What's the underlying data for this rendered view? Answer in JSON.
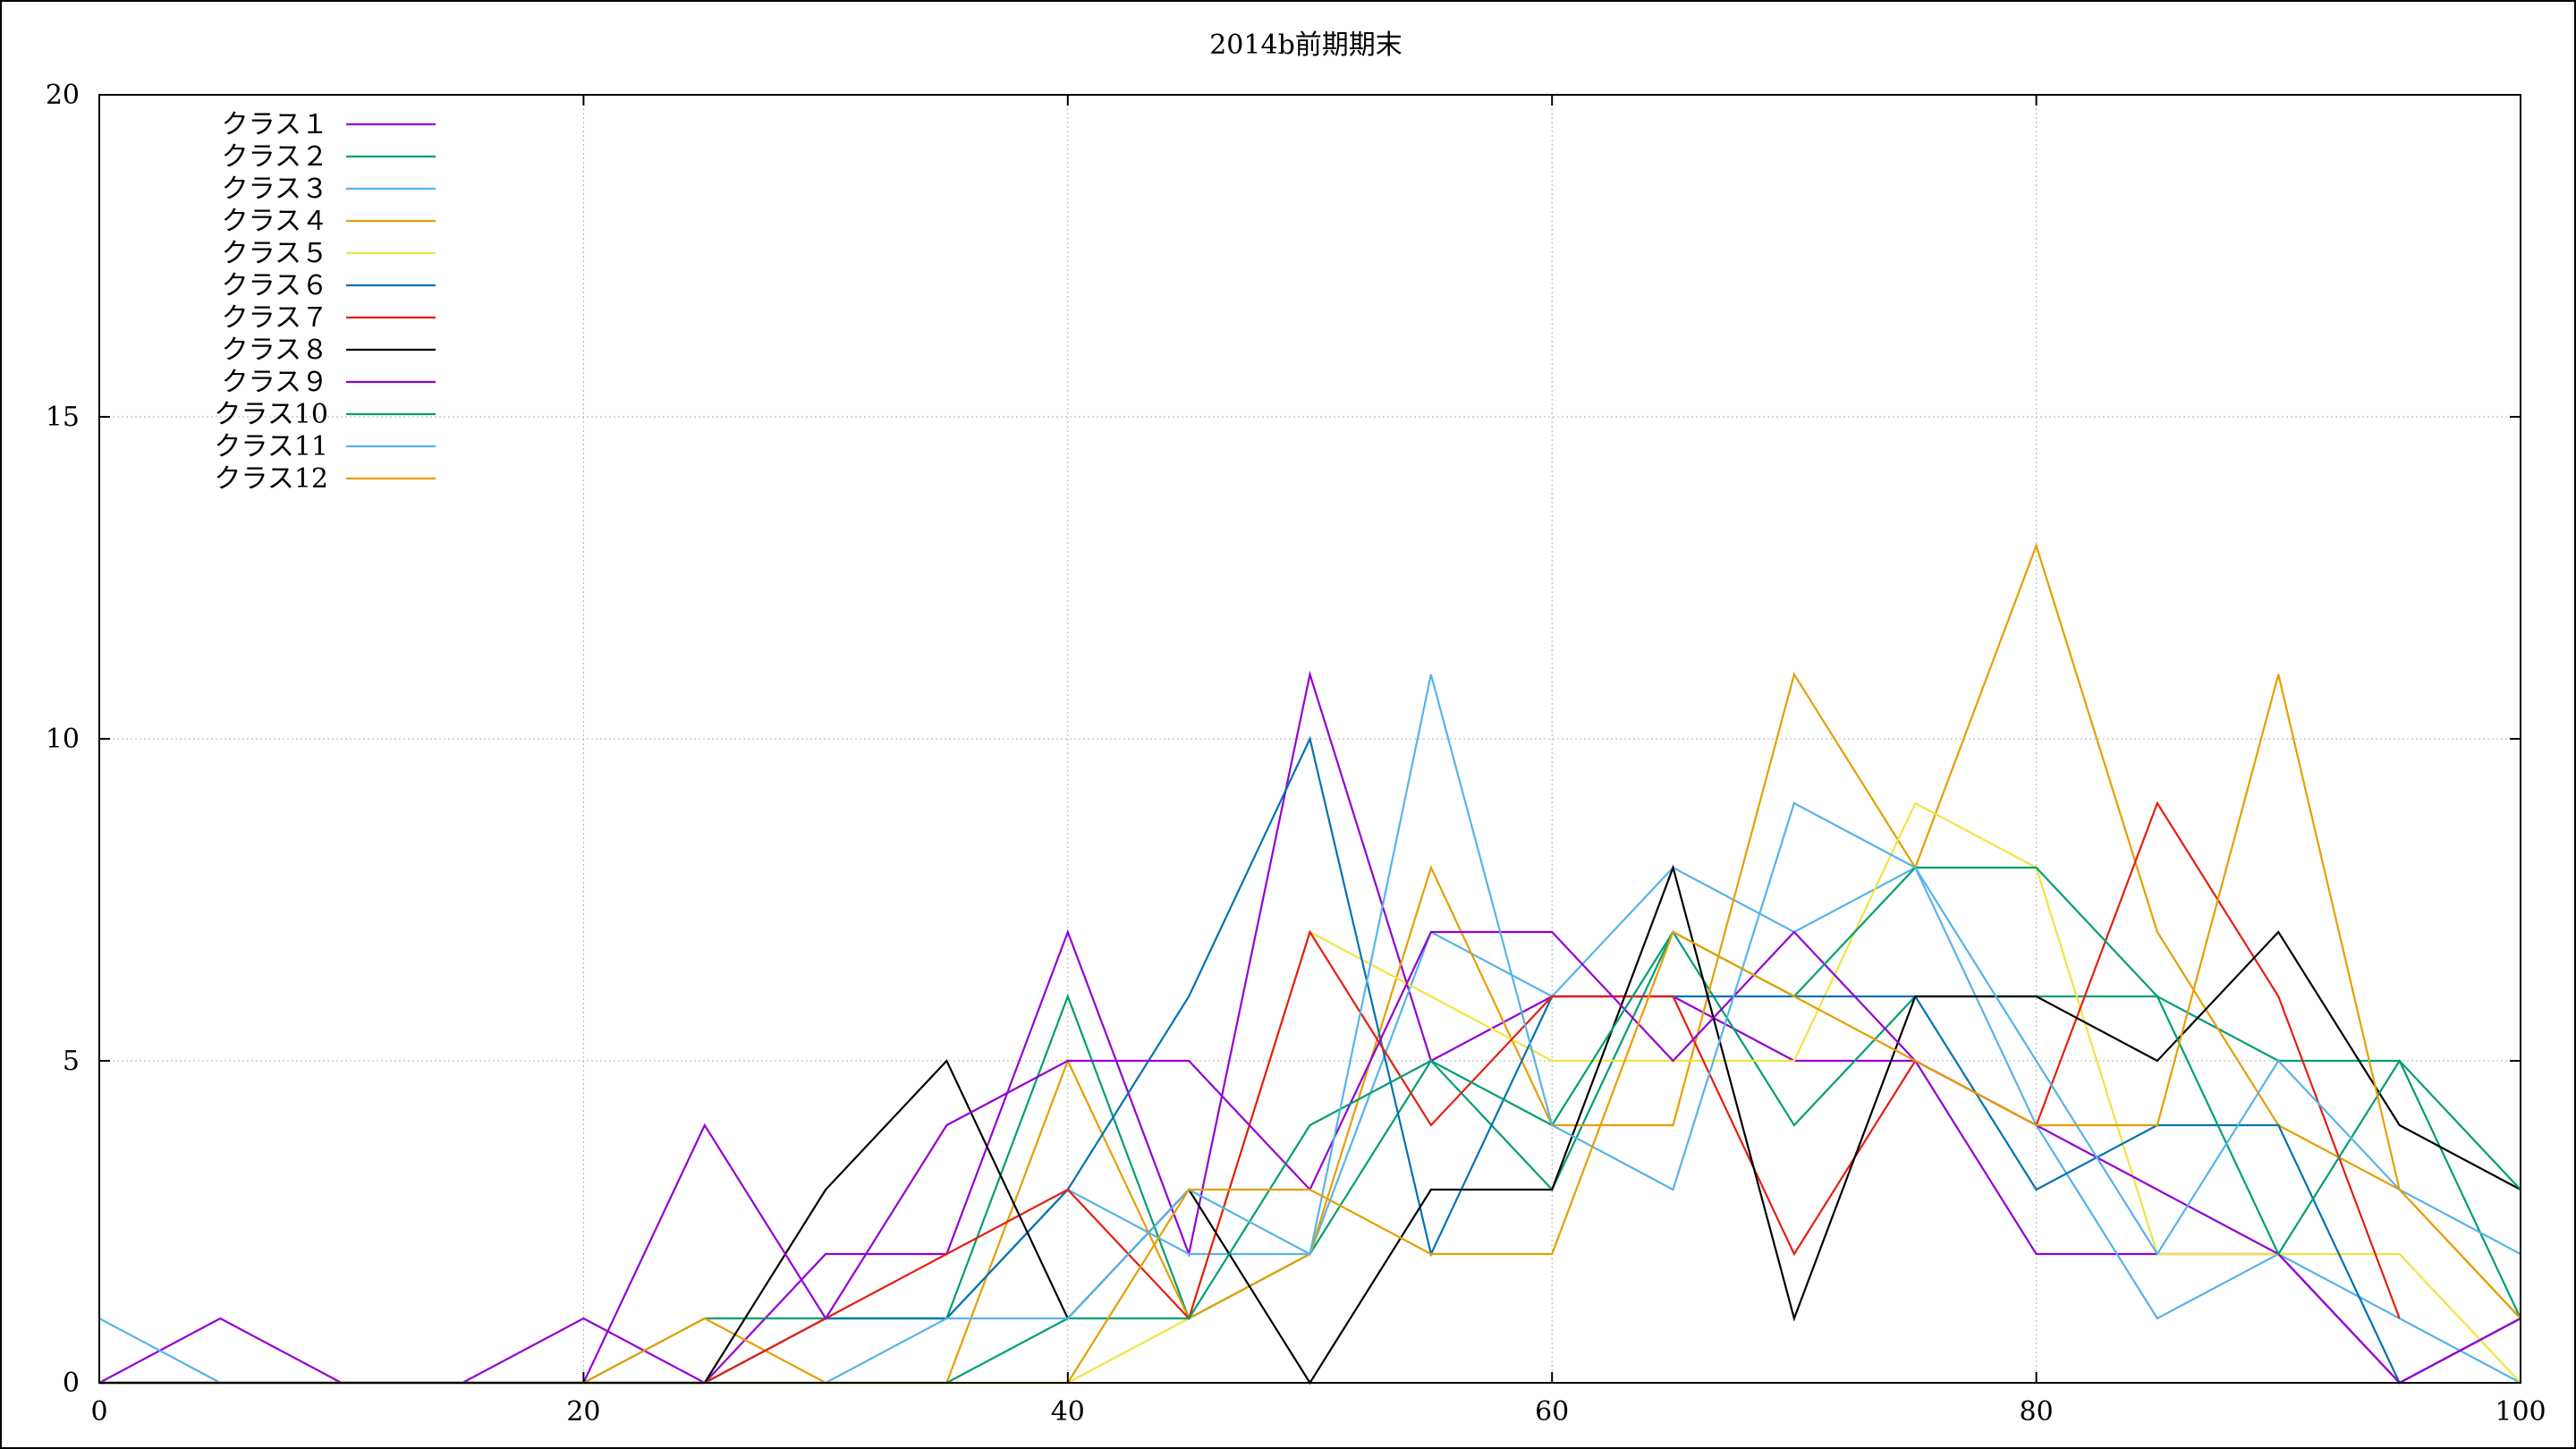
{
  "chart_data": {
    "type": "line",
    "title": "2014b前期期末",
    "xlabel": "",
    "ylabel": "",
    "xlim": [
      0,
      100
    ],
    "ylim": [
      0,
      20
    ],
    "grid": true,
    "legend_placement": "top-left",
    "x_ticks": [
      "0",
      "20",
      "40",
      "60",
      "80",
      "100"
    ],
    "y_ticks": [
      "0",
      "5",
      "10",
      "15",
      "20"
    ],
    "x": [
      0,
      5,
      10,
      15,
      20,
      25,
      30,
      35,
      40,
      45,
      50,
      55,
      60,
      65,
      70,
      75,
      80,
      85,
      90,
      95,
      100
    ],
    "series": [
      {
        "name": "クラス１",
        "color": "#9400d3",
        "values": [
          0,
          1,
          0,
          0,
          1,
          0,
          2,
          2,
          7,
          2,
          11,
          5,
          6,
          6,
          5,
          5,
          2,
          2,
          2,
          0,
          1
        ]
      },
      {
        "name": "クラス２",
        "color": "#009e73",
        "values": [
          0,
          0,
          0,
          0,
          0,
          1,
          1,
          1,
          6,
          1,
          2,
          5,
          3,
          7,
          4,
          6,
          6,
          6,
          5,
          5,
          1
        ]
      },
      {
        "name": "クラス３",
        "color": "#56b4e9",
        "values": [
          0,
          0,
          0,
          0,
          0,
          0,
          1,
          1,
          3,
          2,
          2,
          7,
          6,
          8,
          7,
          8,
          4,
          1,
          2,
          1,
          0
        ]
      },
      {
        "name": "クラス４",
        "color": "#e69f00",
        "values": [
          0,
          0,
          0,
          0,
          0,
          1,
          0,
          0,
          5,
          1,
          2,
          8,
          4,
          4,
          11,
          8,
          13,
          7,
          4,
          3,
          1
        ]
      },
      {
        "name": "クラス５",
        "color": "#f0e442",
        "values": [
          0,
          0,
          0,
          0,
          0,
          0,
          0,
          0,
          0,
          1,
          7,
          6,
          5,
          5,
          5,
          9,
          8,
          2,
          2,
          2,
          0
        ]
      },
      {
        "name": "クラス６",
        "color": "#0072b2",
        "values": [
          0,
          0,
          0,
          0,
          0,
          0,
          1,
          1,
          3,
          6,
          10,
          2,
          6,
          6,
          6,
          6,
          3,
          4,
          4,
          0,
          1
        ]
      },
      {
        "name": "クラス７",
        "color": "#e51e10",
        "values": [
          0,
          0,
          0,
          0,
          0,
          0,
          1,
          2,
          3,
          1,
          7,
          4,
          6,
          6,
          2,
          5,
          4,
          9,
          6,
          1,
          null
        ]
      },
      {
        "name": "クラス８",
        "color": "#000000",
        "values": [
          0,
          0,
          0,
          0,
          0,
          0,
          3,
          5,
          1,
          3,
          0,
          3,
          3,
          8,
          1,
          6,
          6,
          5,
          7,
          4,
          3
        ]
      },
      {
        "name": "クラス９",
        "color": "#9400d3",
        "values": [
          0,
          0,
          0,
          0,
          0,
          4,
          1,
          4,
          5,
          5,
          3,
          7,
          7,
          5,
          7,
          5,
          4,
          3,
          2,
          0,
          1
        ]
      },
      {
        "name": "クラス10",
        "color": "#009e73",
        "values": [
          0,
          0,
          0,
          0,
          0,
          0,
          0,
          0,
          1,
          1,
          4,
          5,
          4,
          7,
          6,
          8,
          8,
          6,
          2,
          5,
          3
        ]
      },
      {
        "name": "クラス11",
        "color": "#56b4e9",
        "values": [
          1,
          0,
          0,
          0,
          0,
          0,
          0,
          1,
          1,
          3,
          2,
          11,
          4,
          3,
          9,
          8,
          5,
          2,
          5,
          3,
          2
        ]
      },
      {
        "name": "クラス12",
        "color": "#e69f00",
        "values": [
          0,
          0,
          0,
          0,
          0,
          0,
          0,
          0,
          0,
          3,
          3,
          2,
          2,
          7,
          6,
          5,
          4,
          4,
          11,
          3,
          1
        ]
      }
    ]
  }
}
